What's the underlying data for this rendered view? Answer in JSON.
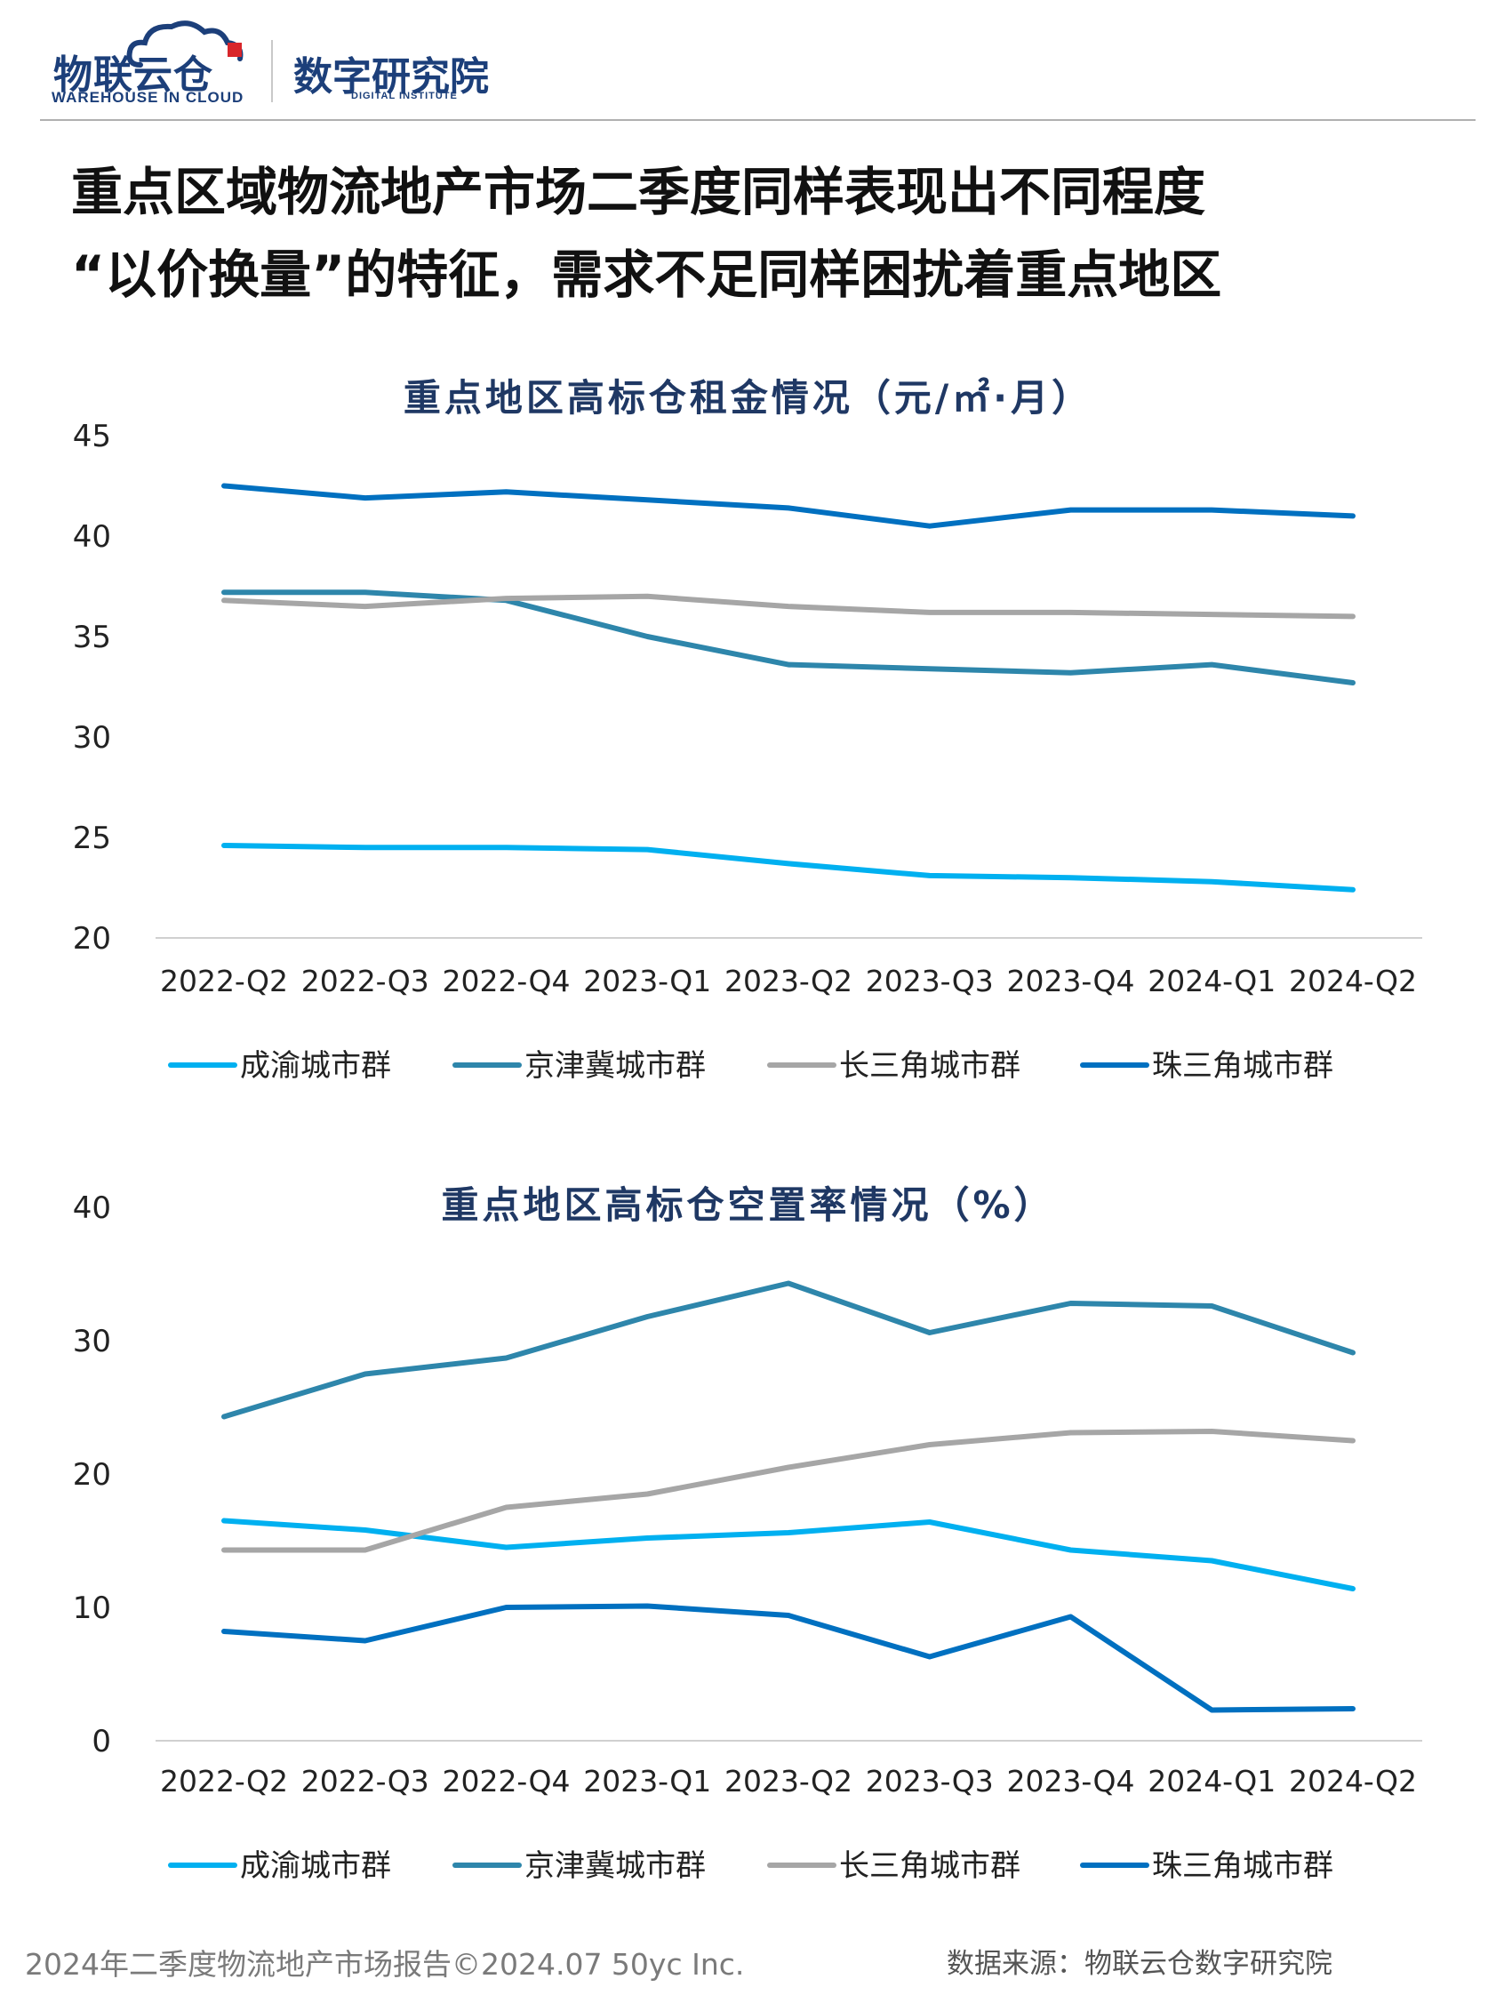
{
  "header": {
    "logo_main": "物联云仓",
    "logo_sub": "WAREHOUSE IN CLOUD",
    "institute": "数字研究院",
    "institute_sub": "DIGITAL INSTITUTE"
  },
  "title_line1": "重点区域物流地产市场二季度同样表现出不同程度",
  "title_line2": "“以价换量”的特征，需求不足同样困扰着重点地区",
  "chart_data": [
    {
      "type": "line",
      "title": "重点地区高标仓租金情况（元/㎡·月）",
      "categories": [
        "2022-Q2",
        "2022-Q3",
        "2022-Q4",
        "2023-Q1",
        "2023-Q2",
        "2023-Q3",
        "2023-Q4",
        "2024-Q1",
        "2024-Q2"
      ],
      "ylim": [
        20,
        45
      ],
      "yticks": [
        "20",
        "25",
        "30",
        "35",
        "40",
        "45"
      ],
      "yticks_values": [
        20,
        25,
        30,
        35,
        40,
        45
      ],
      "grid": false,
      "legend_position": "bottom",
      "series": [
        {
          "name": "成渝城市群",
          "color": "#00b0f0",
          "values": [
            24.6,
            24.5,
            24.5,
            24.4,
            23.7,
            23.1,
            23.0,
            22.8,
            22.4
          ]
        },
        {
          "name": "京津冀城市群",
          "color": "#2e86ab",
          "values": [
            37.2,
            37.2,
            36.8,
            35.0,
            33.6,
            33.4,
            33.2,
            33.6,
            32.7
          ]
        },
        {
          "name": "长三角城市群",
          "color": "#a6a6a6",
          "values": [
            36.8,
            36.5,
            36.9,
            37.0,
            36.5,
            36.2,
            36.2,
            36.1,
            36.0
          ]
        },
        {
          "name": "珠三角城市群",
          "color": "#0070c0",
          "values": [
            42.5,
            41.9,
            42.2,
            41.8,
            41.4,
            40.5,
            41.3,
            41.3,
            41.0
          ]
        }
      ]
    },
    {
      "type": "line",
      "title": "重点地区高标仓空置率情况（%）",
      "categories": [
        "2022-Q2",
        "2022-Q3",
        "2022-Q4",
        "2023-Q1",
        "2023-Q2",
        "2023-Q3",
        "2023-Q4",
        "2024-Q1",
        "2024-Q2"
      ],
      "ylim": [
        0,
        40
      ],
      "yticks": [
        "0",
        "10",
        "20",
        "30",
        "40"
      ],
      "yticks_values": [
        0,
        10,
        20,
        30,
        40
      ],
      "grid": false,
      "legend_position": "bottom",
      "series": [
        {
          "name": "成渝城市群",
          "color": "#00b0f0",
          "values": [
            16.5,
            15.8,
            14.5,
            15.2,
            15.6,
            16.4,
            14.3,
            13.5,
            11.4
          ]
        },
        {
          "name": "京津冀城市群",
          "color": "#2e86ab",
          "values": [
            24.3,
            27.5,
            28.7,
            31.8,
            34.3,
            30.6,
            32.8,
            32.6,
            29.1
          ]
        },
        {
          "name": "长三角城市群",
          "color": "#a6a6a6",
          "values": [
            14.3,
            14.3,
            17.5,
            18.5,
            20.5,
            22.2,
            23.1,
            23.2,
            22.5
          ]
        },
        {
          "name": "珠三角城市群",
          "color": "#0070c0",
          "values": [
            8.2,
            7.5,
            10.0,
            10.1,
            9.4,
            6.3,
            9.3,
            2.3,
            2.4
          ]
        }
      ]
    }
  ],
  "footer": {
    "left": "2024年二季度物流地产市场报告©2024.07 50yc Inc.",
    "right": "数据来源：物联云仓数字研究院"
  }
}
